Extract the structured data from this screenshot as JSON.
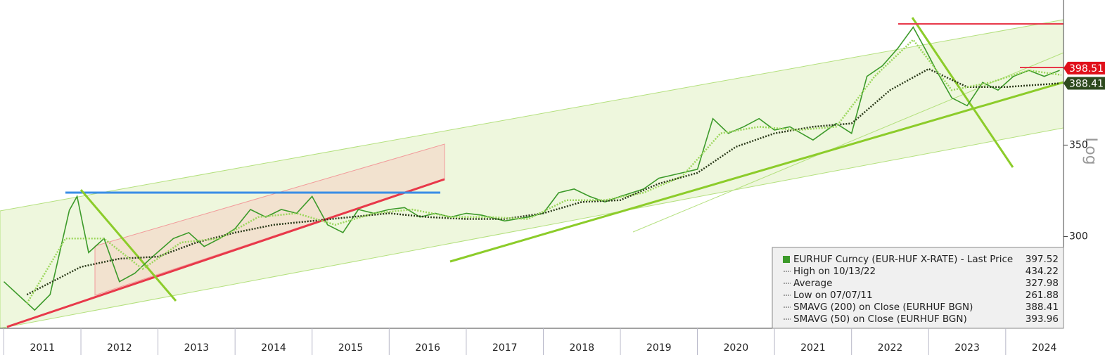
{
  "chart_data": {
    "type": "line",
    "log_scale": true,
    "y_axis_label": "Log",
    "xlim": [
      2010.95,
      2024.75
    ],
    "ylim": [
      257,
      447
    ],
    "xticks": [
      2011,
      2012,
      2013,
      2014,
      2015,
      2016,
      2017,
      2018,
      2019,
      2020,
      2021,
      2022,
      2023,
      2024
    ],
    "yticks": [
      300,
      350
    ],
    "series": [
      {
        "name": "EURHUF Curncy (EUR-HUF X-RATE) - Last Price",
        "color": "#3c9a2a",
        "style": "solid",
        "x": [
          2011.0,
          2011.4,
          2011.6,
          2011.85,
          2011.95,
          2012.1,
          2012.3,
          2012.5,
          2012.7,
          2012.9,
          2013.2,
          2013.4,
          2013.6,
          2013.8,
          2014.0,
          2014.2,
          2014.4,
          2014.6,
          2014.8,
          2015.0,
          2015.2,
          2015.4,
          2015.6,
          2015.8,
          2016.0,
          2016.2,
          2016.4,
          2016.6,
          2016.8,
          2017.0,
          2017.2,
          2017.5,
          2017.8,
          2018.0,
          2018.2,
          2018.4,
          2018.6,
          2018.8,
          2019.0,
          2019.3,
          2019.5,
          2019.8,
          2020.0,
          2020.2,
          2020.4,
          2020.6,
          2020.8,
          2021.0,
          2021.2,
          2021.5,
          2021.8,
          2022.0,
          2022.2,
          2022.4,
          2022.6,
          2022.8,
          2022.95,
          2023.1,
          2023.3,
          2023.5,
          2023.7,
          2023.9,
          2024.1,
          2024.3,
          2024.5,
          2024.7
        ],
        "values": [
          278,
          265,
          272,
          313.6,
          321,
          292,
          299,
          278,
          282,
          289,
          299,
          302,
          295,
          299,
          304,
          314,
          310,
          314,
          312,
          321,
          306,
          302,
          314,
          312,
          314,
          315,
          310,
          312,
          310,
          312,
          311,
          308,
          310,
          312,
          323,
          325,
          321,
          318,
          321,
          325,
          331,
          334,
          336,
          366,
          357,
          361,
          366,
          359,
          361,
          353,
          363,
          357,
          393,
          400,
          412,
          427,
          412,
          397,
          379,
          374,
          389,
          384,
          393,
          397,
          393,
          397
        ]
      },
      {
        "name": "SMAVG (200)  on Close (EURHUF BGN)",
        "color": "#2b3a1a",
        "style": "dotted",
        "x": [
          2011.3,
          2012.0,
          2012.5,
          2013.0,
          2013.5,
          2014.0,
          2014.5,
          2015.0,
          2015.5,
          2016.0,
          2016.5,
          2017.0,
          2017.5,
          2018.0,
          2018.5,
          2019.0,
          2019.5,
          2020.0,
          2020.5,
          2021.0,
          2021.5,
          2022.0,
          2022.5,
          2023.0,
          2023.5,
          2024.0,
          2024.7
        ],
        "values": [
          272,
          285,
          289,
          290,
          297,
          302,
          306,
          308,
          310,
          312,
          310,
          309,
          309,
          312,
          318,
          319,
          328,
          334,
          349,
          357,
          361,
          363,
          384,
          398,
          386,
          386,
          388.41
        ]
      },
      {
        "name": "SMAVG (50)  on Close (EURHUF BGN)",
        "color": "#9ad65a",
        "style": "dotted",
        "x": [
          2011.3,
          2011.8,
          2012.3,
          2012.8,
          2013.3,
          2013.8,
          2014.3,
          2014.8,
          2015.3,
          2015.8,
          2016.3,
          2016.8,
          2017.3,
          2017.8,
          2018.3,
          2018.8,
          2019.3,
          2019.8,
          2020.3,
          2020.8,
          2021.3,
          2021.8,
          2022.3,
          2022.8,
          2023.3,
          2023.8,
          2024.3,
          2024.72
        ],
        "values": [
          268,
          299,
          299,
          284,
          297,
          299,
          310,
          312,
          306,
          312,
          314,
          310,
          310,
          309,
          319,
          319,
          323,
          332,
          357,
          361,
          359,
          361,
          393,
          418,
          384,
          389,
          397,
          393.96
        ]
      }
    ],
    "price_labels": [
      {
        "value": 398.51,
        "color": "#e0101a"
      },
      {
        "value": 388.41,
        "color": "#2e4a1e"
      }
    ],
    "legend_box": [
      {
        "label": "EURHUF Curncy (EUR-HUF X-RATE) - Last Price",
        "value": 397.52
      },
      {
        "label": "High on 10/13/22",
        "value": 434.22
      },
      {
        "label": "Average",
        "value": 327.98
      },
      {
        "label": "Low on 07/07/11",
        "value": 261.88
      },
      {
        "label": "SMAVG (200)  on Close (EURHUF BGN)",
        "value": 388.41
      },
      {
        "label": "SMAVG (50)  on Close (EURHUF BGN)",
        "value": 393.96
      }
    ]
  }
}
